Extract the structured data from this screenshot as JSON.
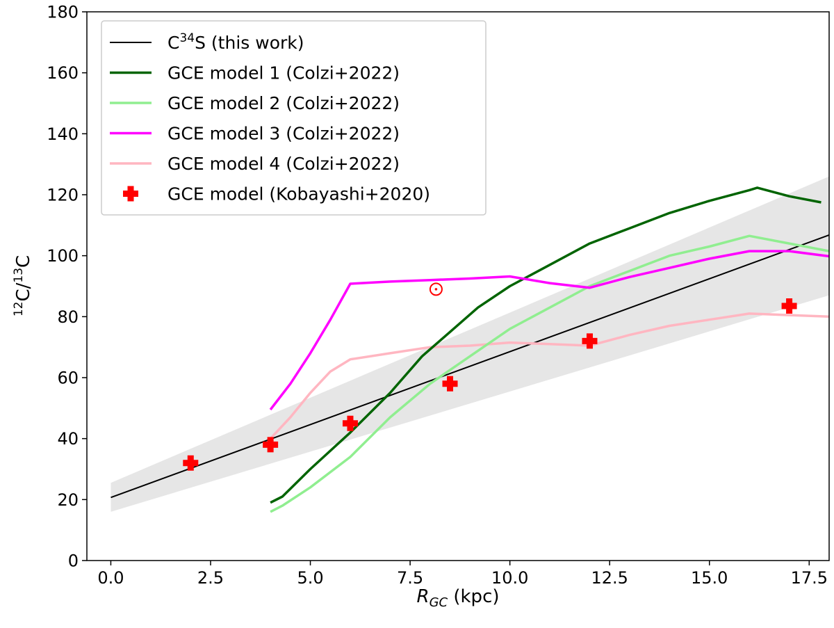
{
  "chart_data": {
    "type": "line",
    "xlabel_main": "R",
    "xlabel_sub": "GC",
    "xlabel_unit": " (kpc)",
    "ylabel": {
      "pre_sup": "12",
      "base1": "C/",
      "mid_sup": "13",
      "base2": "C"
    },
    "xlim": [
      -0.6,
      18.0
    ],
    "ylim": [
      0,
      180
    ],
    "xticks": [
      0.0,
      2.5,
      5.0,
      7.5,
      10.0,
      12.5,
      15.0,
      17.5
    ],
    "xtick_labels": [
      "0.0",
      "2.5",
      "5.0",
      "7.5",
      "10.0",
      "12.5",
      "15.0",
      "17.5"
    ],
    "yticks": [
      0,
      20,
      40,
      60,
      80,
      100,
      120,
      140,
      160,
      180
    ],
    "ytick_labels": [
      "0",
      "20",
      "40",
      "60",
      "80",
      "100",
      "120",
      "140",
      "160",
      "180"
    ],
    "fit_band": {
      "upper": [
        [
          0,
          25.5
        ],
        [
          18,
          126
        ]
      ],
      "lower": [
        [
          0,
          16
        ],
        [
          18,
          87
        ]
      ],
      "color": "#e6e6e6"
    },
    "series": [
      {
        "name": "C34S (this work)",
        "legend": {
          "pre": "C",
          "sup": "34",
          "post": "S (this work)"
        },
        "color": "#000000",
        "width": 2,
        "points": [
          [
            0,
            20.7
          ],
          [
            18,
            106.8
          ]
        ]
      },
      {
        "name": "GCE model 1 (Colzi+2022)",
        "legend": {
          "pre": "GCE model 1 (Colzi+2022)",
          "sup": "",
          "post": ""
        },
        "color": "#006400",
        "width": 3.5,
        "points": [
          [
            4.0,
            19
          ],
          [
            4.3,
            21
          ],
          [
            5.0,
            30
          ],
          [
            6.0,
            42
          ],
          [
            7.0,
            55
          ],
          [
            7.8,
            67
          ],
          [
            8.5,
            75
          ],
          [
            9.2,
            83
          ],
          [
            10.0,
            90
          ],
          [
            11.0,
            97
          ],
          [
            12.0,
            104
          ],
          [
            13.0,
            109
          ],
          [
            14.0,
            114
          ],
          [
            15.0,
            118
          ],
          [
            16.0,
            121.5
          ],
          [
            16.2,
            122.3
          ],
          [
            17.0,
            119.5
          ],
          [
            17.8,
            117.5
          ]
        ]
      },
      {
        "name": "GCE model 2 (Colzi+2022)",
        "legend": {
          "pre": "GCE model 2 (Colzi+2022)",
          "sup": "",
          "post": ""
        },
        "color": "#90ee90",
        "width": 3.5,
        "points": [
          [
            4.0,
            16
          ],
          [
            4.3,
            18
          ],
          [
            5.0,
            24
          ],
          [
            6.0,
            34
          ],
          [
            7.0,
            47
          ],
          [
            8.0,
            58
          ],
          [
            9.0,
            67
          ],
          [
            10.0,
            76
          ],
          [
            11.0,
            83
          ],
          [
            12.0,
            90
          ],
          [
            13.0,
            95
          ],
          [
            14.0,
            100
          ],
          [
            15.0,
            103
          ],
          [
            16.0,
            106.5
          ],
          [
            17.0,
            104
          ],
          [
            18.0,
            101.5
          ]
        ]
      },
      {
        "name": "GCE model 3 (Colzi+2022)",
        "legend": {
          "pre": "GCE model 3 (Colzi+2022)",
          "sup": "",
          "post": ""
        },
        "color": "#ff00ff",
        "width": 3.5,
        "points": [
          [
            4.0,
            49.5
          ],
          [
            4.5,
            58
          ],
          [
            5.0,
            68
          ],
          [
            5.5,
            79
          ],
          [
            6.0,
            90.8
          ],
          [
            7.0,
            91.5
          ],
          [
            8.0,
            92
          ],
          [
            9.0,
            92.5
          ],
          [
            10.0,
            93.2
          ],
          [
            11.0,
            91
          ],
          [
            12.0,
            89.5
          ],
          [
            13.0,
            93
          ],
          [
            14.0,
            96
          ],
          [
            15.0,
            99
          ],
          [
            16.0,
            101.5
          ],
          [
            17.0,
            101.5
          ],
          [
            18.0,
            99.8
          ]
        ]
      },
      {
        "name": "GCE model 4 (Colzi+2022)",
        "legend": {
          "pre": "GCE model 4 (Colzi+2022)",
          "sup": "",
          "post": ""
        },
        "color": "#ffb6c1",
        "width": 3.5,
        "points": [
          [
            4.0,
            40
          ],
          [
            4.5,
            47
          ],
          [
            5.0,
            55
          ],
          [
            5.5,
            62
          ],
          [
            6.0,
            66
          ],
          [
            7.0,
            68
          ],
          [
            8.0,
            70
          ],
          [
            9.0,
            70.5
          ],
          [
            10.0,
            71.5
          ],
          [
            11.0,
            71
          ],
          [
            12.0,
            70.5
          ],
          [
            13.0,
            74
          ],
          [
            14.0,
            77
          ],
          [
            15.0,
            79
          ],
          [
            16.0,
            81
          ],
          [
            17.0,
            80.5
          ],
          [
            18.0,
            80
          ]
        ]
      }
    ],
    "kobayashi": {
      "name": "GCE model (Kobayashi+2020)",
      "legend": {
        "pre": "GCE model (Kobayashi+2020)",
        "sup": "",
        "post": ""
      },
      "color": "#ff0000",
      "points": [
        [
          2,
          32
        ],
        [
          4,
          38
        ],
        [
          6,
          45
        ],
        [
          8.5,
          58
        ],
        [
          12,
          72
        ],
        [
          17,
          83.5
        ]
      ]
    },
    "sun": {
      "x": 8.15,
      "y": 89,
      "color": "#ff0000"
    },
    "legend_position": "upper-left"
  }
}
